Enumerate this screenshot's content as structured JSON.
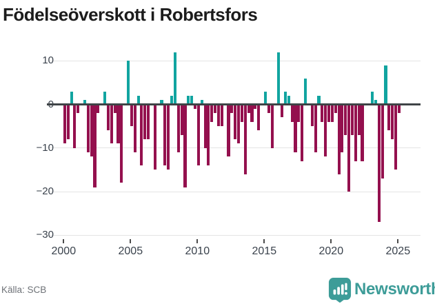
{
  "title": "Födelseöverskott i Robertsfors",
  "source_label": "Källa: SCB",
  "brand": {
    "name": "Newsworthy",
    "color": "#3d9c98",
    "icon": "bar-chart-speech-bubble"
  },
  "colors": {
    "positive": "#11a4a0",
    "negative": "#94104e",
    "zero_axis": "#3f4447",
    "gridline": "#e4e4e4",
    "axis_text": "#3a424c"
  },
  "chart_data": {
    "type": "bar",
    "title": "Födelseöverskott i Robertsfors",
    "xlabel": "",
    "ylabel": "",
    "ylim": [
      -30,
      13
    ],
    "grid": "horizontal",
    "y_ticks": [
      10,
      0,
      -10,
      -20,
      -30
    ],
    "y_tick_labels": [
      "10",
      "0",
      "−10",
      "−20",
      "−30"
    ],
    "x_tick_labels": [
      "2000",
      "2005",
      "2010",
      "2015",
      "2020",
      "2025"
    ],
    "x_tick_years": [
      2000,
      2005,
      2010,
      2015,
      2020,
      2025
    ],
    "frequency": "quarterly",
    "start_year": 2000,
    "start_quarter": 1,
    "categories": [
      "2000Q1",
      "2000Q2",
      "2000Q3",
      "2000Q4",
      "2001Q1",
      "2001Q2",
      "2001Q3",
      "2001Q4",
      "2002Q1",
      "2002Q2",
      "2002Q3",
      "2002Q4",
      "2003Q1",
      "2003Q2",
      "2003Q3",
      "2003Q4",
      "2004Q1",
      "2004Q2",
      "2004Q3",
      "2004Q4",
      "2005Q1",
      "2005Q2",
      "2005Q3",
      "2005Q4",
      "2006Q1",
      "2006Q2",
      "2006Q3",
      "2006Q4",
      "2007Q1",
      "2007Q2",
      "2007Q3",
      "2007Q4",
      "2008Q1",
      "2008Q2",
      "2008Q3",
      "2008Q4",
      "2009Q1",
      "2009Q2",
      "2009Q3",
      "2009Q4",
      "2010Q1",
      "2010Q2",
      "2010Q3",
      "2010Q4",
      "2011Q1",
      "2011Q2",
      "2011Q3",
      "2011Q4",
      "2012Q1",
      "2012Q2",
      "2012Q3",
      "2012Q4",
      "2013Q1",
      "2013Q2",
      "2013Q3",
      "2013Q4",
      "2014Q1",
      "2014Q2",
      "2014Q3",
      "2014Q4",
      "2015Q1",
      "2015Q2",
      "2015Q3",
      "2015Q4",
      "2016Q1",
      "2016Q2",
      "2016Q3",
      "2016Q4",
      "2017Q1",
      "2017Q2",
      "2017Q3",
      "2017Q4",
      "2018Q1",
      "2018Q2",
      "2018Q3",
      "2018Q4",
      "2019Q1",
      "2019Q2",
      "2019Q3",
      "2019Q4",
      "2020Q1",
      "2020Q2",
      "2020Q3",
      "2020Q4",
      "2021Q1",
      "2021Q2",
      "2021Q3",
      "2021Q4",
      "2022Q1",
      "2022Q2",
      "2022Q3",
      "2022Q4",
      "2023Q1",
      "2023Q2",
      "2023Q3",
      "2023Q4",
      "2024Q1",
      "2024Q2",
      "2024Q3",
      "2024Q4",
      "2025Q1"
    ],
    "values": [
      -9,
      -8,
      3,
      -10,
      -2,
      0,
      1,
      -11,
      -12,
      -19,
      -2,
      0,
      3,
      -6,
      -9,
      -2,
      -9,
      -18,
      0,
      10,
      -5,
      -11,
      2,
      -14,
      -8,
      -8,
      0,
      -15,
      0,
      1,
      -14,
      -15,
      2,
      12,
      -11,
      -7,
      -19,
      2,
      2,
      -1,
      -14,
      1,
      -10,
      -14,
      -4,
      -2,
      -5,
      -5,
      0,
      -12,
      -2,
      -8,
      -9,
      -4,
      -16,
      -2,
      -4,
      -1,
      -6,
      0,
      3,
      -2,
      -10,
      0,
      12,
      -3,
      3,
      2,
      -4,
      -11,
      -4,
      -13,
      6,
      0,
      -5,
      -11,
      2,
      -4,
      -12,
      -4,
      -4,
      -2,
      -16,
      -11,
      -7,
      -20,
      -7,
      -13,
      -7,
      -13,
      0,
      0,
      3,
      1,
      -27,
      -17,
      9,
      -6,
      -8,
      -15,
      -2
    ],
    "series_colors": {
      "positive": "#11a4a0",
      "negative": "#94104e"
    },
    "legend": "none"
  }
}
